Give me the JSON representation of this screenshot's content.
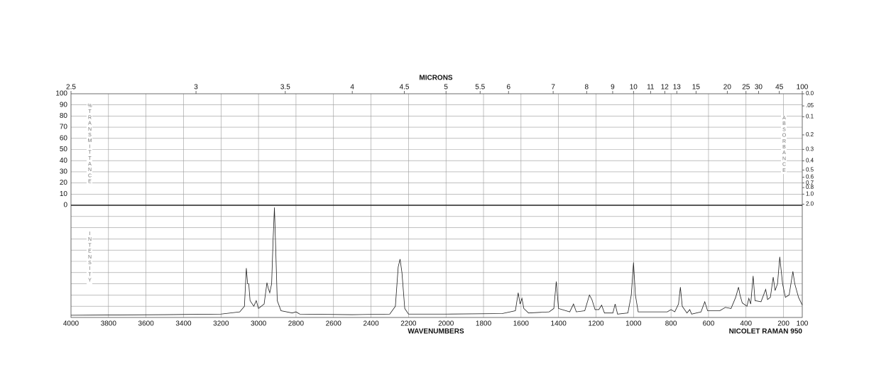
{
  "chart_data": {
    "type": "line",
    "top_axis_label": "MICRONS",
    "x_label": "WAVENUMBERS",
    "instrument": "NICOLET RAMAN 950",
    "left_axis_label": "%TRANSMITTANCE",
    "right_axis_label": "ABSORBANCE",
    "lower_axis_label": "INTENSITY",
    "xlim": [
      4000,
      100
    ],
    "xticks": [
      4000,
      3800,
      3600,
      3400,
      3200,
      3000,
      2800,
      2600,
      2400,
      2200,
      2000,
      1800,
      1600,
      1400,
      1200,
      1000,
      800,
      600,
      400,
      200,
      100
    ],
    "micron_ticks": [
      2.5,
      3,
      3.5,
      4,
      4.5,
      5,
      5.5,
      6,
      7,
      8,
      9,
      10,
      11,
      12,
      13,
      15,
      20,
      25,
      30,
      45,
      100
    ],
    "transmittance_lim": [
      0,
      100
    ],
    "transmittance_ticks": [
      0,
      10,
      20,
      30,
      40,
      50,
      60,
      70,
      80,
      90,
      100
    ],
    "absorbance_ticks": [
      {
        "value": 0,
        "label": "0.0"
      },
      {
        "value": 0.05,
        "label": ".05"
      },
      0.1,
      0.2,
      0.3,
      0.4,
      0.5,
      0.6,
      0.7,
      0.8,
      {
        "value": 1,
        "label": "1.0"
      },
      {
        "value": 2,
        "label": "2.0"
      }
    ],
    "ylim": [
      0,
      100
    ],
    "yticks": [
      0,
      10,
      20,
      30,
      40,
      50,
      60,
      70,
      80,
      90,
      100
    ],
    "grid": true,
    "x": [
      4000,
      3500,
      3200,
      3100,
      3075,
      3065,
      3058,
      3052,
      3045,
      3025,
      3012,
      3000,
      2970,
      2955,
      2948,
      2940,
      2930,
      2922,
      2915,
      2908,
      2900,
      2880,
      2820,
      2800,
      2780,
      2500,
      2300,
      2270,
      2255,
      2245,
      2235,
      2220,
      2200,
      2000,
      1700,
      1630,
      1615,
      1605,
      1595,
      1585,
      1560,
      1450,
      1425,
      1412,
      1400,
      1340,
      1320,
      1305,
      1260,
      1235,
      1222,
      1205,
      1185,
      1170,
      1155,
      1110,
      1098,
      1085,
      1030,
      1012,
      1000,
      990,
      975,
      900,
      820,
      800,
      780,
      760,
      750,
      740,
      715,
      700,
      690,
      640,
      620,
      605,
      540,
      510,
      480,
      455,
      440,
      432,
      420,
      395,
      385,
      375,
      362,
      352,
      320,
      295,
      285,
      270,
      255,
      245,
      232,
      220,
      205,
      190,
      170,
      150,
      140,
      120,
      100
    ],
    "series": [
      {
        "color": "#222222",
        "values": [
          2,
          2.5,
          3,
          5,
          10,
          44,
          30,
          30,
          15,
          10,
          15,
          8,
          12,
          31,
          26,
          22,
          30,
          70,
          98,
          60,
          15,
          6,
          4,
          5,
          3,
          2.5,
          3,
          10,
          45,
          52,
          40,
          8,
          3,
          3,
          3.5,
          6,
          22,
          12,
          17,
          8,
          4,
          5,
          8,
          32,
          8,
          5,
          12,
          5,
          6,
          20,
          16,
          7,
          7,
          11,
          4,
          4,
          12,
          3,
          4,
          20,
          49,
          20,
          5,
          5,
          5,
          7,
          5,
          12,
          27,
          10,
          4,
          7,
          3,
          5,
          14,
          6,
          6,
          9,
          8,
          18,
          27,
          20,
          13,
          10,
          17,
          12,
          37,
          15,
          14,
          25,
          16,
          18,
          36,
          24,
          30,
          54,
          30,
          18,
          20,
          41,
          30,
          18,
          11
        ]
      }
    ]
  }
}
